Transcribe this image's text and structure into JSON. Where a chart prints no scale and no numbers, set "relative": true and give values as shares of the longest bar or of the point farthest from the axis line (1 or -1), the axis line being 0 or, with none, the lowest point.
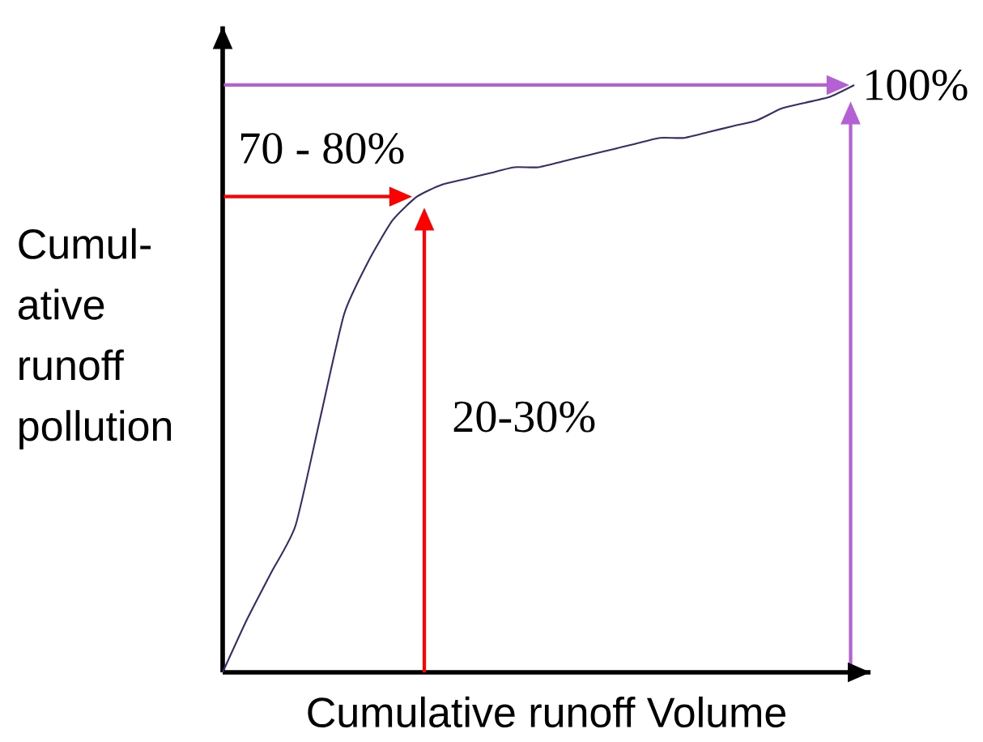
{
  "chart_data": {
    "type": "line",
    "xlabel": "Cumulative runoff Volume",
    "ylabel": "Cumul-ative runoff pollution",
    "relative": true,
    "categories": [
      null,
      null,
      null,
      null,
      null,
      null,
      null,
      null,
      null,
      null,
      null,
      null,
      null,
      null,
      null,
      null,
      null,
      null,
      null,
      null,
      null,
      null,
      null,
      null,
      null,
      null,
      null
    ],
    "series": [
      {
        "color": "#3b2a66",
        "values": [
          0,
          0.09,
          0.17,
          0.25,
          0.43,
          0.61,
          0.7,
          0.77,
          0.81,
          0.83,
          0.84,
          0.85,
          0.86,
          0.86,
          0.87,
          0.88,
          0.89,
          0.9,
          0.91,
          0.91,
          0.92,
          0.93,
          0.94,
          0.96,
          0.97,
          0.98,
          1
        ]
      }
    ],
    "ref_lines": [
      {
        "axis": "y",
        "value": 0.81,
        "color": "#ff0000"
      },
      {
        "axis": "y",
        "value": 1,
        "color": "#b660d6"
      }
    ],
    "annotations": [
      "70 - 80%",
      "20-30%",
      "100%"
    ]
  }
}
